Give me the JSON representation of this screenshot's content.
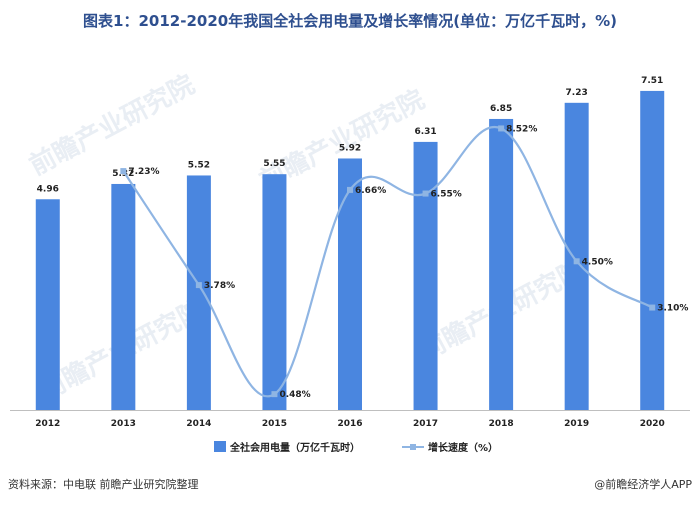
{
  "title": "图表1：2012-2020年我国全社会用电量及增长率情况(单位：万亿千瓦时，%)",
  "colors": {
    "bar": "#4a86df",
    "line": "#8fb5e3",
    "title": "#2e4f8f",
    "watermark": "#e9eef4"
  },
  "chart_data": {
    "type": "bar",
    "title": "图表1：2012-2020年我国全社会用电量及增长率情况(单位：万亿千瓦时，%)",
    "categories": [
      "2012",
      "2013",
      "2014",
      "2015",
      "2016",
      "2017",
      "2018",
      "2019",
      "2020"
    ],
    "series": [
      {
        "name": "全社会用电量（万亿千瓦时）",
        "type": "bar",
        "values": [
          4.96,
          5.32,
          5.52,
          5.55,
          5.92,
          6.31,
          6.85,
          7.23,
          7.51
        ],
        "labels": [
          "4.96",
          "5.32",
          "5.52",
          "5.55",
          "5.92",
          "6.31",
          "6.85",
          "7.23",
          "7.51"
        ]
      },
      {
        "name": "增长速度（%）",
        "type": "line",
        "x": [
          "2013",
          "2014",
          "2015",
          "2016",
          "2017",
          "2018",
          "2019",
          "2020"
        ],
        "values": [
          7.23,
          3.78,
          0.48,
          6.66,
          6.55,
          8.52,
          4.5,
          3.1
        ],
        "labels": [
          "7.23%",
          "3.78%",
          "0.48%",
          "6.66%",
          "6.55%",
          "8.52%",
          "4.50%",
          "3.10%"
        ]
      }
    ],
    "ylim_bar": [
      0,
      8.12
    ],
    "ylim_line": [
      0,
      10.44
    ],
    "grid": false,
    "legend": "bottom"
  },
  "legend": {
    "bar_label": "全社会用电量（万亿千瓦时）",
    "line_label": "增长速度（%）"
  },
  "footer": {
    "source": "资料来源：中电联 前瞻产业研究院整理",
    "brand": "@前瞻经济学人APP"
  },
  "watermark": "前瞻产业研究院"
}
